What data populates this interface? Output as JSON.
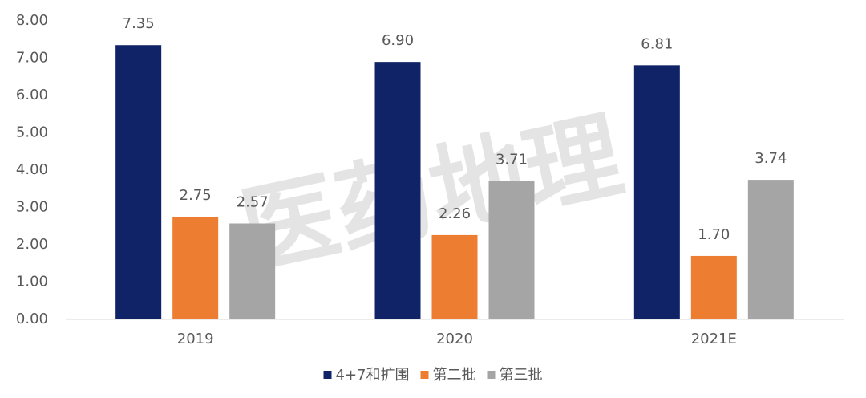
{
  "chart_data": {
    "type": "bar",
    "categories": [
      "2019",
      "2020",
      "2021E"
    ],
    "series": [
      {
        "name": "4+7和扩围",
        "color": "#0f2366",
        "values": [
          7.35,
          6.9,
          6.81
        ],
        "value_labels": [
          "7.35",
          "6.90",
          "6.81"
        ]
      },
      {
        "name": "第二批",
        "color": "#ed7d31",
        "values": [
          2.75,
          2.26,
          1.7
        ],
        "value_labels": [
          "2.75",
          "2.26",
          "1.70"
        ]
      },
      {
        "name": "第三批",
        "color": "#a5a5a5",
        "values": [
          2.57,
          3.71,
          3.74
        ],
        "value_labels": [
          "2.57",
          "3.71",
          "3.74"
        ]
      }
    ],
    "ylim": [
      0,
      8
    ],
    "yticks": [
      {
        "value": 0,
        "label": "0.00"
      },
      {
        "value": 1,
        "label": "1.00"
      },
      {
        "value": 2,
        "label": "2.00"
      },
      {
        "value": 3,
        "label": "3.00"
      },
      {
        "value": 4,
        "label": "4.00"
      },
      {
        "value": 5,
        "label": "5.00"
      },
      {
        "value": 6,
        "label": "6.00"
      },
      {
        "value": 7,
        "label": "7.00"
      },
      {
        "value": 8,
        "label": "8.00"
      }
    ],
    "grid": false,
    "legend": "bottom",
    "watermark": "医药地理"
  }
}
